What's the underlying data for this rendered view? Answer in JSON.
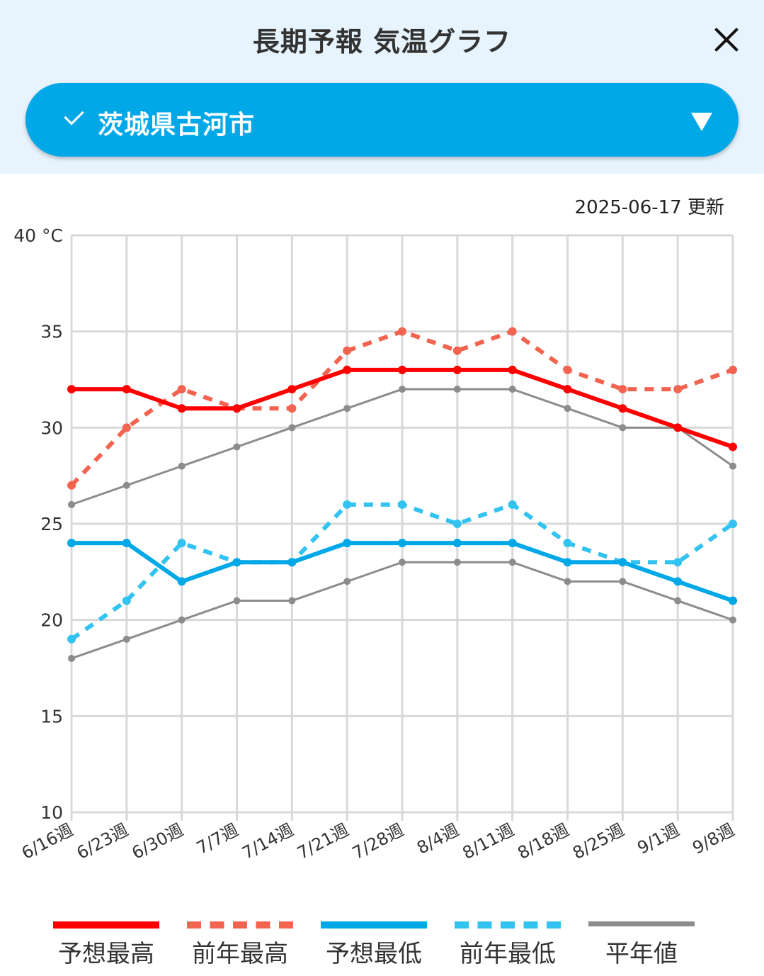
{
  "header": {
    "title": "長期予報 気温グラフ",
    "location": "茨城県古河市"
  },
  "updated": "2025-06-17 更新",
  "colors": {
    "forecast_high": "#ff0000",
    "prev_high": "#f26350",
    "forecast_low": "#00a8e8",
    "prev_low": "#33c3f0",
    "normal": "#8c8c8c",
    "grid": "#d9d9d9"
  },
  "chart_data": {
    "type": "line",
    "title": "長期予報 気温グラフ",
    "ylabel": "40 °C",
    "ylim": [
      10,
      40
    ],
    "yticks": [
      "10",
      "15",
      "20",
      "25",
      "30",
      "35"
    ],
    "categories": [
      "6/16週",
      "6/23週",
      "6/30週",
      "7/7週",
      "7/14週",
      "7/21週",
      "7/28週",
      "8/4週",
      "8/11週",
      "8/18週",
      "8/25週",
      "9/1週",
      "9/8週"
    ],
    "series": [
      {
        "name": "予想最高",
        "style": "solid-thick",
        "values": [
          32,
          32,
          31,
          31,
          32,
          33,
          33,
          33,
          33,
          32,
          31,
          30,
          29
        ]
      },
      {
        "name": "前年最高",
        "style": "dashed",
        "values": [
          27,
          30,
          32,
          31,
          31,
          34,
          35,
          34,
          35,
          33,
          32,
          32,
          33
        ]
      },
      {
        "name": "予想最低",
        "style": "solid-thick",
        "values": [
          24,
          24,
          22,
          23,
          23,
          24,
          24,
          24,
          24,
          23,
          23,
          22,
          21
        ]
      },
      {
        "name": "前年最低",
        "style": "dashed",
        "values": [
          19,
          21,
          24,
          23,
          23,
          26,
          26,
          25,
          26,
          24,
          23,
          23,
          25
        ]
      },
      {
        "name": "平年値(最高)",
        "style": "solid-thin",
        "values": [
          26,
          27,
          28,
          29,
          30,
          31,
          32,
          32,
          32,
          31,
          30,
          30,
          28
        ]
      },
      {
        "name": "平年値(最低)",
        "style": "solid-thin",
        "values": [
          18,
          19,
          20,
          21,
          21,
          22,
          23,
          23,
          23,
          22,
          22,
          21,
          20
        ]
      }
    ]
  },
  "legend": [
    {
      "label": "予想最高"
    },
    {
      "label": "前年最高"
    },
    {
      "label": "予想最低"
    },
    {
      "label": "前年最低"
    },
    {
      "label": "平年値"
    }
  ]
}
